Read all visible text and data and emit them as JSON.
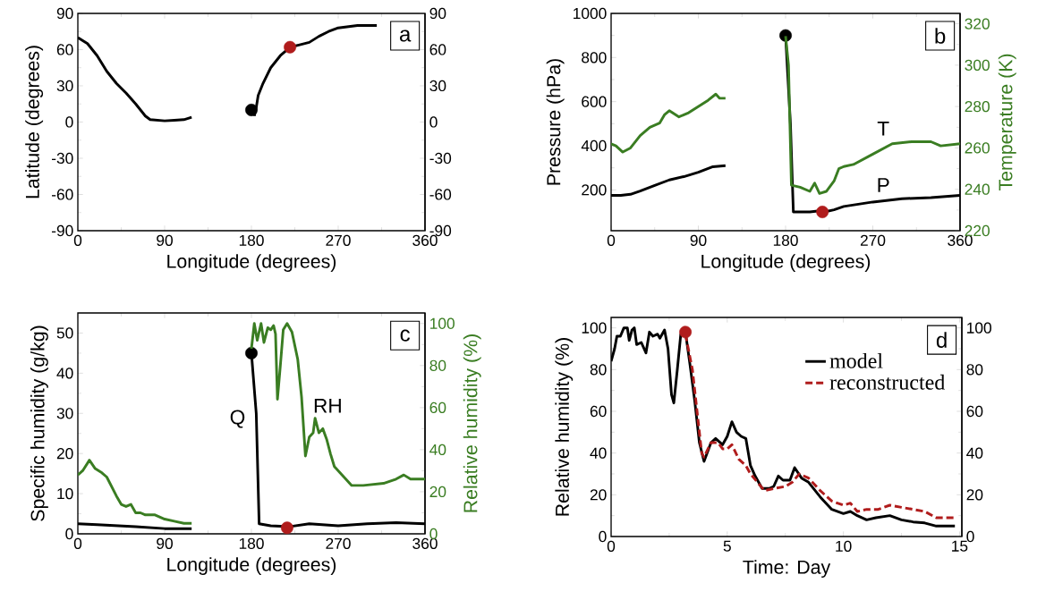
{
  "chart_data": [
    {
      "type": "line",
      "xlabel": "Longitude (degrees)",
      "ylabel": "Latitude (degrees)",
      "annotations": [
        "a"
      ],
      "xlim": [
        0,
        360
      ],
      "xticks": [
        0,
        90,
        180,
        270,
        360
      ],
      "ylim": [
        -90,
        90
      ],
      "yticks": [
        -90,
        -60,
        -30,
        0,
        30,
        60,
        90
      ],
      "y2lim": [
        -90,
        90
      ],
      "y2ticks": [
        -90,
        -60,
        -30,
        0,
        30,
        60,
        90
      ],
      "series": [
        {
          "color": "#000000",
          "x": [
            0,
            10,
            20,
            30,
            40,
            50,
            60,
            70,
            75,
            90,
            100,
            110,
            118,
            150,
            183,
            185,
            187,
            192,
            200,
            210,
            220,
            230,
            240,
            250,
            260,
            270,
            290,
            310
          ],
          "values": [
            70,
            65,
            55,
            42,
            32,
            24,
            15,
            5,
            2,
            1,
            1.5,
            2,
            4,
            null,
            5,
            12,
            22,
            32,
            45,
            55,
            62,
            64,
            66,
            71,
            75,
            78,
            80,
            80
          ]
        },
        {
          "type": "scatter",
          "color": "#000000",
          "x": [
            180
          ],
          "values": [
            10
          ]
        },
        {
          "type": "scatter",
          "color": "#b01c1c",
          "x": [
            220
          ],
          "values": [
            62
          ]
        }
      ]
    },
    {
      "type": "line",
      "xlabel": "Longitude (degrees)",
      "ylabel": "Pressure (hPa)",
      "y2label": "Temperature (K)",
      "annotations": [
        "b"
      ],
      "xlim": [
        0,
        360
      ],
      "xticks": [
        0,
        90,
        180,
        270,
        360
      ],
      "ylim": [
        15,
        1000
      ],
      "yticks": [
        200,
        400,
        600,
        800,
        1000
      ],
      "y2lim": [
        220,
        325
      ],
      "y2ticks": [
        220,
        240,
        260,
        280,
        300,
        320
      ],
      "series": [
        {
          "name": "P",
          "color": "#000000",
          "x": [
            0,
            10,
            20,
            30,
            45,
            60,
            75,
            90,
            105,
            118,
            150,
            180,
            185,
            188,
            205,
            215,
            220,
            230,
            240,
            270,
            300,
            330,
            360
          ],
          "values": [
            175,
            175,
            180,
            195,
            220,
            245,
            260,
            280,
            305,
            310,
            null,
            900,
            500,
            100,
            100,
            105,
            100,
            110,
            125,
            145,
            160,
            165,
            175
          ]
        },
        {
          "name": "T",
          "axis": "y2",
          "color": "#3a7d22",
          "x": [
            0,
            5,
            12,
            20,
            30,
            40,
            50,
            55,
            60,
            70,
            80,
            90,
            100,
            108,
            112,
            118,
            150,
            180,
            183,
            186,
            195,
            205,
            210,
            215,
            222,
            230,
            235,
            240,
            250,
            270,
            290,
            310,
            330,
            340,
            360
          ],
          "values": [
            262,
            261,
            258,
            260,
            266,
            270,
            272,
            276,
            278,
            275,
            277,
            280,
            283,
            286,
            284,
            284,
            null,
            314,
            300,
            242,
            241,
            239,
            243,
            238,
            239,
            244,
            250,
            251,
            252,
            257,
            262,
            263,
            263,
            261,
            262
          ]
        },
        {
          "type": "scatter",
          "color": "#000000",
          "x": [
            180
          ],
          "values": [
            900
          ]
        },
        {
          "type": "scatter",
          "color": "#b01c1c",
          "x": [
            218
          ],
          "values": [
            100
          ]
        }
      ]
    },
    {
      "type": "line",
      "xlabel": "Longitude (degrees)",
      "ylabel": "Specific humidity (g/kg)",
      "y2label": "Relative humidity (%)",
      "annotations": [
        "c"
      ],
      "xlim": [
        0,
        360
      ],
      "xticks": [
        0,
        90,
        180,
        270,
        360
      ],
      "ylim": [
        0,
        55
      ],
      "yticks": [
        0,
        10,
        20,
        30,
        40,
        50
      ],
      "y2lim": [
        0,
        105
      ],
      "y2ticks": [
        0,
        20,
        40,
        60,
        80,
        100
      ],
      "series": [
        {
          "name": "Q",
          "color": "#000000",
          "x": [
            0,
            20,
            60,
            90,
            118,
            150,
            180,
            185,
            188,
            200,
            220,
            240,
            270,
            300,
            330,
            360
          ],
          "values": [
            2.5,
            2.3,
            1.8,
            1.3,
            1.3,
            null,
            45,
            30,
            2.5,
            2,
            1.8,
            2.5,
            2,
            2.5,
            2.8,
            2.5
          ]
        },
        {
          "name": "RH",
          "axis": "y2",
          "color": "#3a7d22",
          "x": [
            0,
            5,
            12,
            18,
            25,
            30,
            40,
            45,
            50,
            55,
            60,
            65,
            70,
            80,
            90,
            100,
            110,
            118,
            150,
            180,
            183,
            186,
            190,
            193,
            197,
            200,
            203,
            205,
            207,
            210,
            213,
            217,
            222,
            228,
            232,
            236,
            240,
            244,
            246,
            250,
            254,
            258,
            262,
            266,
            272,
            278,
            284,
            296,
            317,
            330,
            338,
            345,
            360
          ],
          "values": [
            28,
            30,
            35,
            31,
            29,
            27,
            18,
            14,
            13,
            14,
            10,
            10,
            9,
            9,
            7,
            6,
            5,
            5,
            null,
            88,
            100,
            92,
            100,
            91,
            98,
            97,
            99,
            95,
            64,
            80,
            97,
            100,
            96,
            83,
            65,
            37,
            46,
            48,
            55,
            48,
            50,
            45,
            38,
            32,
            29,
            26,
            23,
            23,
            24,
            26,
            28,
            26,
            26
          ]
        },
        {
          "type": "scatter",
          "color": "#000000",
          "x": [
            180
          ],
          "values": [
            45
          ]
        },
        {
          "type": "scatter",
          "color": "#b01c1c",
          "x": [
            217
          ],
          "values": [
            1.5
          ]
        }
      ]
    },
    {
      "type": "line",
      "xlabel": "Time: Day",
      "ylabel": "Relative humidity (%)",
      "annotations": [
        "d"
      ],
      "legend": "top right",
      "xlim": [
        0,
        15.1
      ],
      "xticks": [
        0,
        5,
        10,
        15
      ],
      "ylim": [
        0,
        105
      ],
      "yticks": [
        0,
        20,
        40,
        60,
        80,
        100
      ],
      "y2lim": [
        0,
        105
      ],
      "y2ticks": [
        0,
        20,
        40,
        60,
        80,
        100
      ],
      "series": [
        {
          "name": "model",
          "color": "#000000",
          "line_style": "solid",
          "x": [
            0,
            0.15,
            0.25,
            0.4,
            0.55,
            0.7,
            0.78,
            0.9,
            1.0,
            1.1,
            1.3,
            1.5,
            1.65,
            1.8,
            2.0,
            2.1,
            2.3,
            2.45,
            2.6,
            2.7,
            2.85,
            3.0,
            3.2,
            3.4,
            3.6,
            3.8,
            4.0,
            4.3,
            4.5,
            4.8,
            5.0,
            5.2,
            5.4,
            5.6,
            5.8,
            6.0,
            6.2,
            6.5,
            6.8,
            7.0,
            7.2,
            7.4,
            7.7,
            7.9,
            8.2,
            8.5,
            9.0,
            9.5,
            10,
            10.3,
            10.6,
            11,
            11.4,
            12,
            12.5,
            13,
            13.5,
            14,
            14.5,
            14.8
          ],
          "values": [
            84,
            90,
            96,
            96,
            100,
            100,
            94,
            99,
            100,
            92,
            93,
            88,
            98,
            96,
            97,
            95,
            99,
            90,
            68,
            64,
            80,
            97,
            98,
            82,
            65,
            45,
            36,
            45,
            47,
            44,
            48,
            55,
            50,
            48,
            47,
            34,
            29,
            23,
            23,
            24,
            29,
            27,
            27,
            33,
            28,
            26,
            19,
            13,
            11,
            12,
            10,
            8,
            9,
            10,
            8,
            7,
            6.5,
            5,
            5,
            5
          ]
        },
        {
          "name": "reconstructed",
          "color": "#b01c1c",
          "line_style": "dashed",
          "x": [
            3.2,
            3.5,
            3.7,
            3.9,
            4.0,
            4.3,
            4.6,
            4.8,
            5.0,
            5.2,
            5.5,
            5.8,
            6.0,
            6.3,
            6.6,
            7.0,
            7.5,
            7.8,
            8.1,
            8.5,
            9.0,
            9.5,
            10.0,
            10.3,
            10.6,
            11,
            11.5,
            12,
            12.5,
            13,
            13.5,
            14,
            14.5,
            14.8
          ],
          "values": [
            97,
            80,
            60,
            40,
            38,
            45,
            45,
            42,
            42,
            44,
            37,
            34,
            30,
            26,
            22,
            23,
            24,
            26,
            30,
            28,
            22,
            17,
            15,
            16,
            12,
            13,
            13,
            15,
            14,
            13,
            12,
            9,
            9,
            9
          ]
        },
        {
          "type": "scatter",
          "color": "#b01c1c",
          "x": [
            3.2
          ],
          "values": [
            98
          ]
        }
      ]
    }
  ]
}
